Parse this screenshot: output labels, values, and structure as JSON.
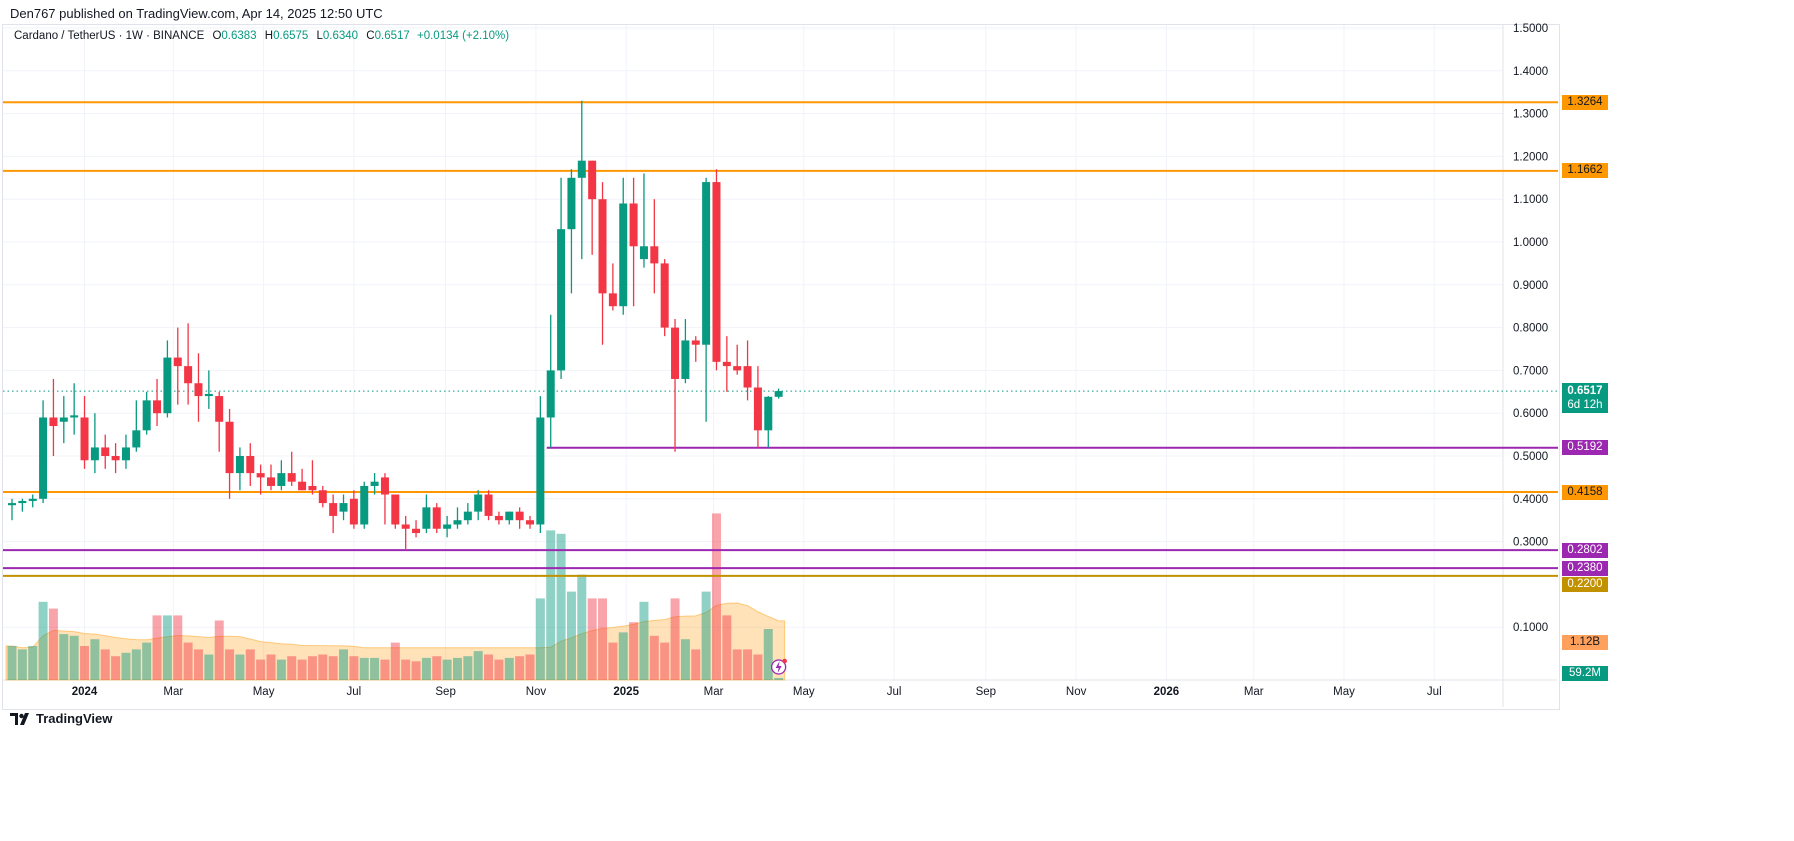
{
  "published": "Den767 published on TradingView.com, Apr 14, 2025 12:50 UTC",
  "legend": {
    "symbol": "Cardano / TetherUS · 1W · BINANCE",
    "o_label": "O",
    "o": "0.6383",
    "h_label": "H",
    "h": "0.6575",
    "l_label": "L",
    "l": "0.6340",
    "c_label": "C",
    "c": "0.6517",
    "change": "+0.0134 (+2.10%)"
  },
  "footer": {
    "brand": "TradingView",
    "logo_icon": "tradingview-logo-icon"
  },
  "colors": {
    "up": "#089981",
    "down": "#f23645",
    "orange": "#ff9800",
    "purple": "#9c27b0",
    "gold": "#c29100",
    "volume_ma": "#ff9800"
  },
  "chart_data": {
    "type": "candlestick",
    "title": "",
    "xlabel": "",
    "ylabel": "",
    "ylim": [
      0.07,
      1.55
    ],
    "grid": true,
    "price_ticks": [
      "1.5000",
      "1.4000",
      "1.3000",
      "1.2000",
      "1.1000",
      "1.0000",
      "0.9000",
      "0.8000",
      "0.7000",
      "0.6000",
      "0.5000",
      "0.4000",
      "0.3000",
      "0.1000"
    ],
    "time_ticks": [
      {
        "label": "2024",
        "date": "2024-01-01"
      },
      {
        "label": "Mar",
        "date": "2024-03-01"
      },
      {
        "label": "May",
        "date": "2024-05-01"
      },
      {
        "label": "Jul",
        "date": "2024-07-01"
      },
      {
        "label": "Sep",
        "date": "2024-09-01"
      },
      {
        "label": "Nov",
        "date": "2024-11-01"
      },
      {
        "label": "2025",
        "date": "2025-01-01"
      },
      {
        "label": "Mar",
        "date": "2025-03-01"
      },
      {
        "label": "May",
        "date": "2025-05-01"
      },
      {
        "label": "Jul",
        "date": "2025-07-01"
      },
      {
        "label": "Sep",
        "date": "2025-09-01"
      },
      {
        "label": "Nov",
        "date": "2025-11-01"
      },
      {
        "label": "2026",
        "date": "2026-01-01"
      },
      {
        "label": "Mar",
        "date": "2026-03-01"
      },
      {
        "label": "May",
        "date": "2026-05-01"
      },
      {
        "label": "Jul",
        "date": "2026-07-01"
      }
    ],
    "candle_fields": [
      "date",
      "open",
      "high",
      "low",
      "close",
      "volume_billions"
    ],
    "candles": [
      [
        "2023-11-13",
        0.385,
        0.4,
        0.35,
        0.39,
        1.0
      ],
      [
        "2023-11-20",
        0.39,
        0.4,
        0.37,
        0.395,
        0.9
      ],
      [
        "2023-11-27",
        0.395,
        0.41,
        0.38,
        0.4,
        1.0
      ],
      [
        "2023-12-04",
        0.4,
        0.63,
        0.39,
        0.59,
        2.3
      ],
      [
        "2023-12-11",
        0.59,
        0.68,
        0.5,
        0.57,
        2.1
      ],
      [
        "2023-12-18",
        0.58,
        0.64,
        0.53,
        0.59,
        1.35
      ],
      [
        "2023-12-25",
        0.59,
        0.67,
        0.55,
        0.595,
        1.3
      ],
      [
        "2024-01-01",
        0.59,
        0.64,
        0.47,
        0.49,
        1.0
      ],
      [
        "2024-01-08",
        0.49,
        0.6,
        0.46,
        0.52,
        1.2
      ],
      [
        "2024-01-15",
        0.52,
        0.55,
        0.47,
        0.5,
        0.9
      ],
      [
        "2024-01-22",
        0.5,
        0.53,
        0.46,
        0.49,
        0.7
      ],
      [
        "2024-01-29",
        0.49,
        0.55,
        0.47,
        0.52,
        0.8
      ],
      [
        "2024-02-05",
        0.52,
        0.63,
        0.51,
        0.56,
        0.9
      ],
      [
        "2024-02-12",
        0.56,
        0.65,
        0.55,
        0.63,
        1.1
      ],
      [
        "2024-02-19",
        0.63,
        0.68,
        0.57,
        0.6,
        1.9
      ],
      [
        "2024-02-26",
        0.6,
        0.77,
        0.59,
        0.73,
        1.9
      ],
      [
        "2024-03-04",
        0.73,
        0.8,
        0.62,
        0.71,
        1.9
      ],
      [
        "2024-03-11",
        0.71,
        0.81,
        0.62,
        0.67,
        1.1
      ],
      [
        "2024-03-18",
        0.67,
        0.74,
        0.58,
        0.64,
        0.9
      ],
      [
        "2024-03-25",
        0.64,
        0.7,
        0.61,
        0.645,
        0.75
      ],
      [
        "2024-04-01",
        0.64,
        0.65,
        0.51,
        0.58,
        1.75
      ],
      [
        "2024-04-08",
        0.58,
        0.61,
        0.4,
        0.46,
        0.9
      ],
      [
        "2024-04-15",
        0.46,
        0.52,
        0.42,
        0.5,
        0.75
      ],
      [
        "2024-04-22",
        0.5,
        0.53,
        0.43,
        0.46,
        0.9
      ],
      [
        "2024-04-29",
        0.46,
        0.48,
        0.41,
        0.45,
        0.6
      ],
      [
        "2024-05-06",
        0.45,
        0.48,
        0.42,
        0.43,
        0.75
      ],
      [
        "2024-05-13",
        0.43,
        0.49,
        0.42,
        0.46,
        0.6
      ],
      [
        "2024-05-20",
        0.46,
        0.51,
        0.43,
        0.44,
        0.7
      ],
      [
        "2024-05-27",
        0.44,
        0.47,
        0.42,
        0.42,
        0.6
      ],
      [
        "2024-06-03",
        0.43,
        0.49,
        0.41,
        0.42,
        0.7
      ],
      [
        "2024-06-10",
        0.42,
        0.43,
        0.38,
        0.39,
        0.75
      ],
      [
        "2024-06-17",
        0.39,
        0.41,
        0.32,
        0.36,
        0.7
      ],
      [
        "2024-06-24",
        0.37,
        0.41,
        0.35,
        0.39,
        0.9
      ],
      [
        "2024-07-01",
        0.4,
        0.42,
        0.33,
        0.34,
        0.7
      ],
      [
        "2024-07-08",
        0.34,
        0.44,
        0.33,
        0.43,
        0.65
      ],
      [
        "2024-07-15",
        0.43,
        0.46,
        0.41,
        0.44,
        0.65
      ],
      [
        "2024-07-22",
        0.45,
        0.46,
        0.34,
        0.41,
        0.6
      ],
      [
        "2024-07-29",
        0.41,
        0.41,
        0.33,
        0.34,
        1.1
      ],
      [
        "2024-08-05",
        0.34,
        0.36,
        0.28,
        0.33,
        0.6
      ],
      [
        "2024-08-12",
        0.33,
        0.35,
        0.31,
        0.32,
        0.55
      ],
      [
        "2024-08-19",
        0.33,
        0.41,
        0.32,
        0.38,
        0.65
      ],
      [
        "2024-08-26",
        0.38,
        0.39,
        0.32,
        0.33,
        0.7
      ],
      [
        "2024-09-02",
        0.33,
        0.36,
        0.31,
        0.34,
        0.6
      ],
      [
        "2024-09-09",
        0.34,
        0.38,
        0.33,
        0.35,
        0.65
      ],
      [
        "2024-09-16",
        0.35,
        0.39,
        0.34,
        0.37,
        0.7
      ],
      [
        "2024-09-23",
        0.37,
        0.42,
        0.35,
        0.41,
        0.85
      ],
      [
        "2024-09-30",
        0.41,
        0.42,
        0.35,
        0.36,
        0.75
      ],
      [
        "2024-10-07",
        0.36,
        0.37,
        0.34,
        0.35,
        0.6
      ],
      [
        "2024-10-14",
        0.35,
        0.37,
        0.34,
        0.37,
        0.65
      ],
      [
        "2024-10-21",
        0.37,
        0.38,
        0.33,
        0.35,
        0.7
      ],
      [
        "2024-10-28",
        0.35,
        0.36,
        0.33,
        0.34,
        0.75
      ],
      [
        "2024-11-04",
        0.34,
        0.64,
        0.32,
        0.59,
        2.4
      ],
      [
        "2024-11-11",
        0.59,
        0.83,
        0.52,
        0.7,
        4.4
      ],
      [
        "2024-11-18",
        0.7,
        1.15,
        0.68,
        1.03,
        4.3
      ],
      [
        "2024-11-25",
        1.03,
        1.17,
        0.88,
        1.15,
        2.6
      ],
      [
        "2024-12-02",
        1.15,
        1.33,
        0.96,
        1.19,
        3.1
      ],
      [
        "2024-12-09",
        1.19,
        1.19,
        0.97,
        1.1,
        2.4
      ],
      [
        "2024-12-16",
        1.1,
        1.14,
        0.76,
        0.88,
        2.4
      ],
      [
        "2024-12-23",
        0.88,
        0.95,
        0.84,
        0.85,
        1.1
      ],
      [
        "2024-12-30",
        0.85,
        1.15,
        0.83,
        1.09,
        1.4
      ],
      [
        "2025-01-06",
        1.09,
        1.15,
        0.85,
        0.99,
        1.7
      ],
      [
        "2025-01-13",
        0.96,
        1.16,
        0.94,
        0.99,
        2.3
      ],
      [
        "2025-01-20",
        0.99,
        1.1,
        0.88,
        0.95,
        1.3
      ],
      [
        "2025-01-27",
        0.95,
        0.96,
        0.78,
        0.8,
        1.1
      ],
      [
        "2025-02-03",
        0.8,
        0.82,
        0.51,
        0.68,
        2.4
      ],
      [
        "2025-02-10",
        0.68,
        0.82,
        0.67,
        0.77,
        1.2
      ],
      [
        "2025-02-17",
        0.77,
        0.78,
        0.72,
        0.76,
        0.9
      ],
      [
        "2025-02-24",
        0.76,
        1.15,
        0.58,
        1.14,
        2.6
      ],
      [
        "2025-03-03",
        1.14,
        1.17,
        0.7,
        0.72,
        4.9
      ],
      [
        "2025-03-10",
        0.72,
        0.78,
        0.65,
        0.71,
        1.9
      ],
      [
        "2025-03-17",
        0.71,
        0.76,
        0.69,
        0.7,
        0.9
      ],
      [
        "2025-03-24",
        0.71,
        0.77,
        0.63,
        0.66,
        0.9
      ],
      [
        "2025-03-31",
        0.66,
        0.71,
        0.52,
        0.56,
        0.75
      ],
      [
        "2025-04-07",
        0.56,
        0.64,
        0.52,
        0.6383,
        1.5
      ],
      [
        "2025-04-14",
        0.6383,
        0.6575,
        0.634,
        0.6517,
        0.0592
      ]
    ],
    "horizontal_levels": [
      {
        "value": "1.3264",
        "color": "orange"
      },
      {
        "value": "1.1662",
        "color": "orange"
      },
      {
        "value": "0.5192",
        "color": "purple",
        "from": "2024-11-11"
      },
      {
        "value": "0.4158",
        "color": "orange"
      },
      {
        "value": "0.2802",
        "color": "purple"
      },
      {
        "value": "0.2380",
        "color": "purple"
      },
      {
        "value": "0.2200",
        "color": "gold"
      }
    ],
    "last_price": {
      "value": "0.6517",
      "countdown": "6d 12h"
    },
    "volume_ma_label": "1.12B",
    "volume_label": "59.2M"
  }
}
